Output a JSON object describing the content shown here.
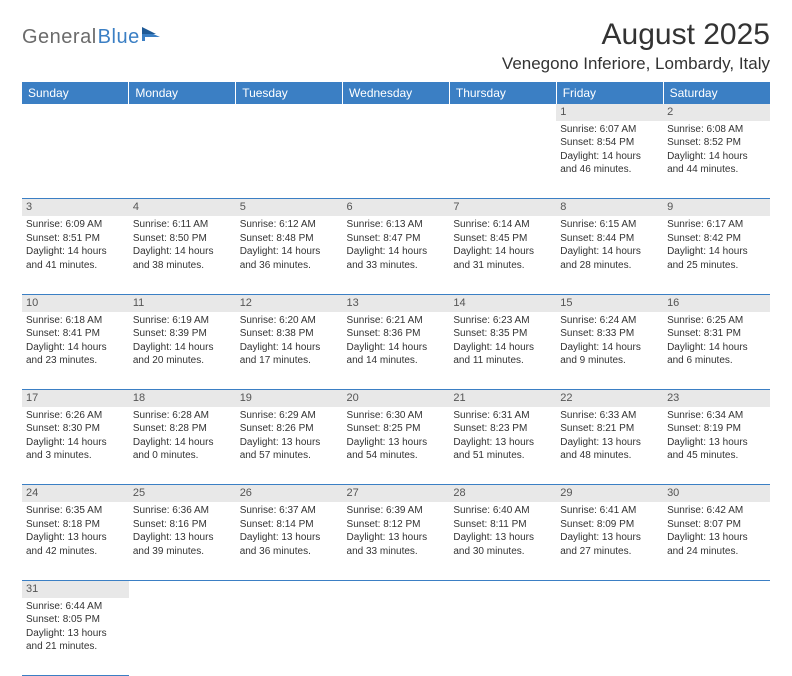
{
  "logo": {
    "part1": "General",
    "part2": "Blue"
  },
  "title": "August 2025",
  "location": "Venegono Inferiore, Lombardy, Italy",
  "colors": {
    "header_bg": "#3b7fc4",
    "header_text": "#ffffff",
    "daynum_bg": "#e8e8e8",
    "border": "#3b7fc4",
    "body_text": "#333333"
  },
  "weekdays": [
    "Sunday",
    "Monday",
    "Tuesday",
    "Wednesday",
    "Thursday",
    "Friday",
    "Saturday"
  ],
  "weeks": [
    [
      null,
      null,
      null,
      null,
      null,
      {
        "n": "1",
        "sunrise": "6:07 AM",
        "sunset": "8:54 PM",
        "daylight": "14 hours and 46 minutes."
      },
      {
        "n": "2",
        "sunrise": "6:08 AM",
        "sunset": "8:52 PM",
        "daylight": "14 hours and 44 minutes."
      }
    ],
    [
      {
        "n": "3",
        "sunrise": "6:09 AM",
        "sunset": "8:51 PM",
        "daylight": "14 hours and 41 minutes."
      },
      {
        "n": "4",
        "sunrise": "6:11 AM",
        "sunset": "8:50 PM",
        "daylight": "14 hours and 38 minutes."
      },
      {
        "n": "5",
        "sunrise": "6:12 AM",
        "sunset": "8:48 PM",
        "daylight": "14 hours and 36 minutes."
      },
      {
        "n": "6",
        "sunrise": "6:13 AM",
        "sunset": "8:47 PM",
        "daylight": "14 hours and 33 minutes."
      },
      {
        "n": "7",
        "sunrise": "6:14 AM",
        "sunset": "8:45 PM",
        "daylight": "14 hours and 31 minutes."
      },
      {
        "n": "8",
        "sunrise": "6:15 AM",
        "sunset": "8:44 PM",
        "daylight": "14 hours and 28 minutes."
      },
      {
        "n": "9",
        "sunrise": "6:17 AM",
        "sunset": "8:42 PM",
        "daylight": "14 hours and 25 minutes."
      }
    ],
    [
      {
        "n": "10",
        "sunrise": "6:18 AM",
        "sunset": "8:41 PM",
        "daylight": "14 hours and 23 minutes."
      },
      {
        "n": "11",
        "sunrise": "6:19 AM",
        "sunset": "8:39 PM",
        "daylight": "14 hours and 20 minutes."
      },
      {
        "n": "12",
        "sunrise": "6:20 AM",
        "sunset": "8:38 PM",
        "daylight": "14 hours and 17 minutes."
      },
      {
        "n": "13",
        "sunrise": "6:21 AM",
        "sunset": "8:36 PM",
        "daylight": "14 hours and 14 minutes."
      },
      {
        "n": "14",
        "sunrise": "6:23 AM",
        "sunset": "8:35 PM",
        "daylight": "14 hours and 11 minutes."
      },
      {
        "n": "15",
        "sunrise": "6:24 AM",
        "sunset": "8:33 PM",
        "daylight": "14 hours and 9 minutes."
      },
      {
        "n": "16",
        "sunrise": "6:25 AM",
        "sunset": "8:31 PM",
        "daylight": "14 hours and 6 minutes."
      }
    ],
    [
      {
        "n": "17",
        "sunrise": "6:26 AM",
        "sunset": "8:30 PM",
        "daylight": "14 hours and 3 minutes."
      },
      {
        "n": "18",
        "sunrise": "6:28 AM",
        "sunset": "8:28 PM",
        "daylight": "14 hours and 0 minutes."
      },
      {
        "n": "19",
        "sunrise": "6:29 AM",
        "sunset": "8:26 PM",
        "daylight": "13 hours and 57 minutes."
      },
      {
        "n": "20",
        "sunrise": "6:30 AM",
        "sunset": "8:25 PM",
        "daylight": "13 hours and 54 minutes."
      },
      {
        "n": "21",
        "sunrise": "6:31 AM",
        "sunset": "8:23 PM",
        "daylight": "13 hours and 51 minutes."
      },
      {
        "n": "22",
        "sunrise": "6:33 AM",
        "sunset": "8:21 PM",
        "daylight": "13 hours and 48 minutes."
      },
      {
        "n": "23",
        "sunrise": "6:34 AM",
        "sunset": "8:19 PM",
        "daylight": "13 hours and 45 minutes."
      }
    ],
    [
      {
        "n": "24",
        "sunrise": "6:35 AM",
        "sunset": "8:18 PM",
        "daylight": "13 hours and 42 minutes."
      },
      {
        "n": "25",
        "sunrise": "6:36 AM",
        "sunset": "8:16 PM",
        "daylight": "13 hours and 39 minutes."
      },
      {
        "n": "26",
        "sunrise": "6:37 AM",
        "sunset": "8:14 PM",
        "daylight": "13 hours and 36 minutes."
      },
      {
        "n": "27",
        "sunrise": "6:39 AM",
        "sunset": "8:12 PM",
        "daylight": "13 hours and 33 minutes."
      },
      {
        "n": "28",
        "sunrise": "6:40 AM",
        "sunset": "8:11 PM",
        "daylight": "13 hours and 30 minutes."
      },
      {
        "n": "29",
        "sunrise": "6:41 AM",
        "sunset": "8:09 PM",
        "daylight": "13 hours and 27 minutes."
      },
      {
        "n": "30",
        "sunrise": "6:42 AM",
        "sunset": "8:07 PM",
        "daylight": "13 hours and 24 minutes."
      }
    ],
    [
      {
        "n": "31",
        "sunrise": "6:44 AM",
        "sunset": "8:05 PM",
        "daylight": "13 hours and 21 minutes."
      },
      null,
      null,
      null,
      null,
      null,
      null
    ]
  ],
  "labels": {
    "sunrise": "Sunrise: ",
    "sunset": "Sunset: ",
    "daylight": "Daylight: "
  }
}
